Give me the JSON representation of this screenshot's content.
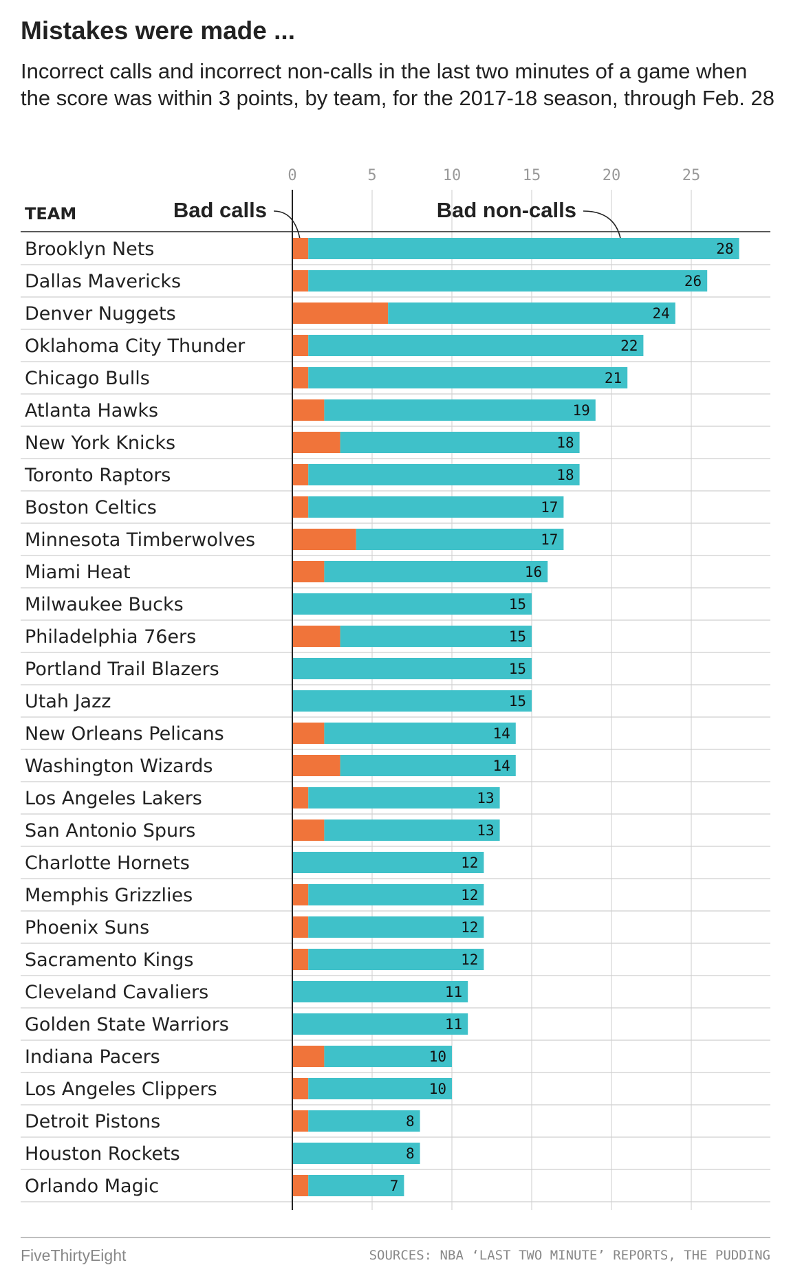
{
  "title": "Mistakes were made ...",
  "subtitle": "Incorrect calls and incorrect non-calls in the last two minutes of a game when the score was within 3 points, by team, for the 2017-18 season, through Feb. 28",
  "footer": {
    "credit": "FiveThirtyEight",
    "source": "SOURCES: NBA ‘LAST TWO MINUTE’ REPORTS, THE PUDDING"
  },
  "chart_data": {
    "type": "bar",
    "orientation": "horizontal",
    "stacked": true,
    "category_header": "TEAM",
    "x_ticks": [
      0,
      5,
      10,
      15,
      20,
      25
    ],
    "xlim": [
      0,
      28
    ],
    "grid": true,
    "colors": {
      "bad_calls": "#f0743a",
      "bad_non_calls": "#3fc1c9"
    },
    "annotations": [
      {
        "text": "Bad calls",
        "series": "bad_calls"
      },
      {
        "text": "Bad non-calls",
        "series": "bad_non_calls"
      }
    ],
    "categories": [
      "Brooklyn Nets",
      "Dallas Mavericks",
      "Denver Nuggets",
      "Oklahoma City Thunder",
      "Chicago Bulls",
      "Atlanta Hawks",
      "New York Knicks",
      "Toronto Raptors",
      "Boston Celtics",
      "Minnesota Timberwolves",
      "Miami Heat",
      "Milwaukee Bucks",
      "Philadelphia 76ers",
      "Portland Trail Blazers",
      "Utah Jazz",
      "New Orleans Pelicans",
      "Washington Wizards",
      "Los Angeles Lakers",
      "San Antonio Spurs",
      "Charlotte Hornets",
      "Memphis Grizzlies",
      "Phoenix Suns",
      "Sacramento Kings",
      "Cleveland Cavaliers",
      "Golden State Warriors",
      "Indiana Pacers",
      "Los Angeles Clippers",
      "Detroit Pistons",
      "Houston Rockets",
      "Orlando Magic"
    ],
    "bad_calls": [
      1,
      1,
      6,
      1,
      1,
      2,
      3,
      1,
      1,
      4,
      2,
      0,
      3,
      0,
      0,
      2,
      3,
      1,
      2,
      0,
      1,
      1,
      1,
      0,
      0,
      2,
      1,
      1,
      0,
      1
    ],
    "bad_non_calls": [
      27,
      25,
      18,
      21,
      20,
      17,
      15,
      17,
      16,
      13,
      14,
      15,
      12,
      15,
      15,
      12,
      11,
      12,
      11,
      12,
      11,
      11,
      11,
      11,
      11,
      8,
      9,
      7,
      8,
      6
    ],
    "totals": [
      28,
      26,
      24,
      22,
      21,
      19,
      18,
      18,
      17,
      17,
      16,
      15,
      15,
      15,
      15,
      14,
      14,
      13,
      13,
      12,
      12,
      12,
      12,
      11,
      11,
      10,
      10,
      8,
      8,
      7
    ]
  }
}
